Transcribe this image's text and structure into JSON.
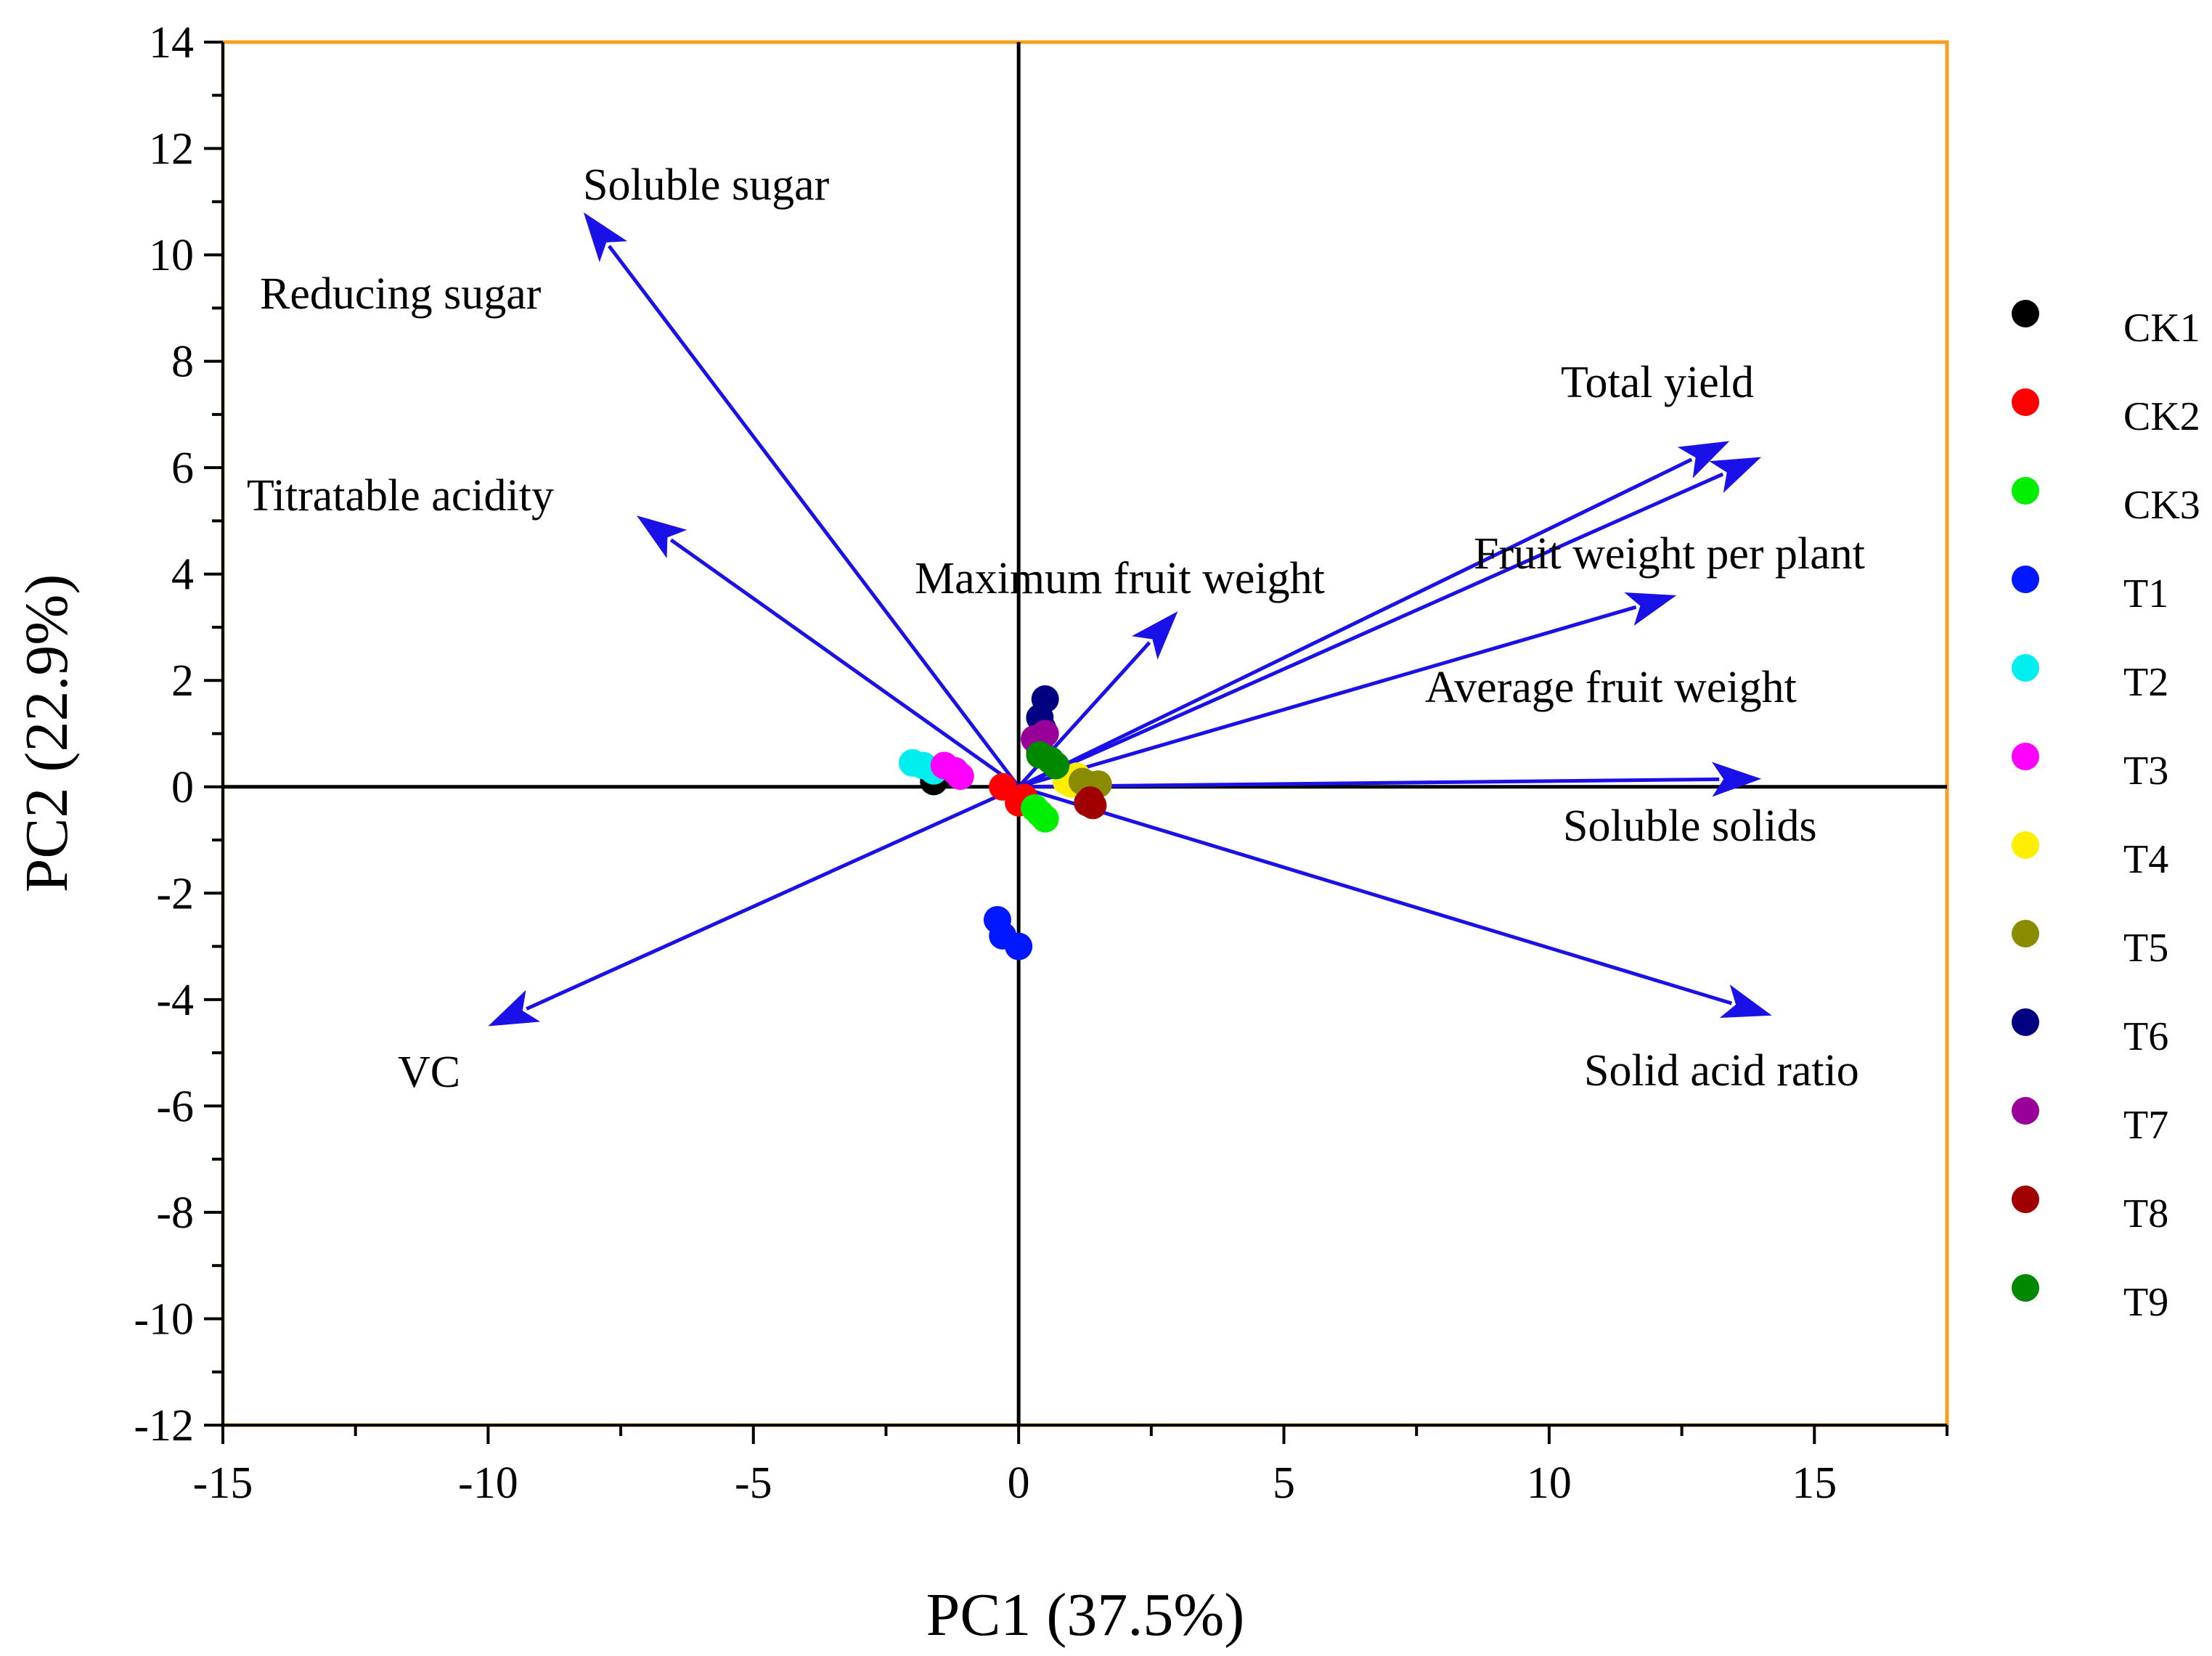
{
  "chart_data": {
    "type": "scatter",
    "subtype": "pca-biplot",
    "xlabel": "PC1 (37.5%)",
    "ylabel": "PC2 (22.9%)",
    "xlim": [
      -15,
      17.5
    ],
    "ylim": [
      -12,
      14
    ],
    "xticks": [
      -15,
      -10,
      -5,
      0,
      5,
      10,
      15
    ],
    "yticks": [
      -12,
      -10,
      -8,
      -6,
      -4,
      -2,
      0,
      2,
      4,
      6,
      8,
      10,
      12,
      14
    ],
    "grid": false,
    "legend_position": "right",
    "colors": {
      "arrow": "#1a10e8",
      "frame": "#f5a020",
      "axis": "#000000"
    },
    "loadings": [
      {
        "label": "Soluble sugar",
        "x": -8.2,
        "y": 10.8
      },
      {
        "label": "Reducing sugar",
        "x": -8.2,
        "y": 10.8
      },
      {
        "label": "Titratable acidity",
        "x": -7.2,
        "y": 5.1
      },
      {
        "label": "Maximum fruit weight",
        "x": 3.0,
        "y": 3.3
      },
      {
        "label": "Total yield",
        "x": 13.4,
        "y": 6.5
      },
      {
        "label": "Fruit weight per plant",
        "x": 14.0,
        "y": 6.2
      },
      {
        "label": "Average fruit weight",
        "x": 12.4,
        "y": 3.6
      },
      {
        "label": "Soluble solids",
        "x": 14.0,
        "y": 0.15
      },
      {
        "label": "Solid acid ratio",
        "x": 14.2,
        "y": -4.3
      },
      {
        "label": "VC",
        "x": -10.0,
        "y": -4.5
      }
    ],
    "series": [
      {
        "name": "CK1",
        "color": "#000000",
        "points": [
          [
            -1.6,
            0.1
          ],
          [
            -1.5,
            0.2
          ],
          [
            -1.6,
            0.15
          ]
        ]
      },
      {
        "name": "CK2",
        "color": "#ff0000",
        "points": [
          [
            -0.3,
            0.0
          ],
          [
            0.0,
            -0.3
          ],
          [
            0.1,
            -0.2
          ]
        ]
      },
      {
        "name": "CK3",
        "color": "#00ee00",
        "points": [
          [
            0.4,
            -0.5
          ],
          [
            0.5,
            -0.6
          ],
          [
            0.3,
            -0.4
          ]
        ]
      },
      {
        "name": "T1",
        "color": "#0018ff",
        "points": [
          [
            -0.4,
            -2.5
          ],
          [
            -0.3,
            -2.8
          ],
          [
            0.0,
            -3.0
          ]
        ]
      },
      {
        "name": "T2",
        "color": "#00eeee",
        "points": [
          [
            -2.0,
            0.45
          ],
          [
            -1.8,
            0.4
          ],
          [
            -1.6,
            0.3
          ]
        ]
      },
      {
        "name": "T3",
        "color": "#ff00ff",
        "points": [
          [
            -1.4,
            0.4
          ],
          [
            -1.1,
            0.2
          ],
          [
            -1.2,
            0.3
          ]
        ]
      },
      {
        "name": "T4",
        "color": "#ffee00",
        "points": [
          [
            0.9,
            0.1
          ],
          [
            1.1,
            0.2
          ],
          [
            1.0,
            0.05
          ]
        ]
      },
      {
        "name": "T5",
        "color": "#8b8b00",
        "points": [
          [
            1.3,
            0.05
          ],
          [
            1.5,
            0.05
          ],
          [
            1.2,
            0.1
          ]
        ]
      },
      {
        "name": "T6",
        "color": "#000080",
        "points": [
          [
            0.5,
            1.65
          ],
          [
            0.4,
            1.3
          ],
          [
            0.45,
            1.1
          ]
        ]
      },
      {
        "name": "T7",
        "color": "#990099",
        "points": [
          [
            0.3,
            0.9
          ],
          [
            0.4,
            0.7
          ],
          [
            0.5,
            1.0
          ]
        ]
      },
      {
        "name": "T8",
        "color": "#a00000",
        "points": [
          [
            1.3,
            -0.3
          ],
          [
            1.4,
            -0.35
          ],
          [
            1.35,
            -0.25
          ]
        ]
      },
      {
        "name": "T9",
        "color": "#008800",
        "points": [
          [
            0.4,
            0.6
          ],
          [
            0.6,
            0.5
          ],
          [
            0.7,
            0.4
          ]
        ]
      }
    ]
  }
}
